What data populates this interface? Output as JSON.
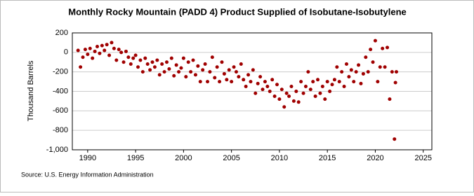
{
  "chart_data": {
    "type": "scatter",
    "title": "Monthly Rocky Mountain (PADD 4) Product Supplied of Isobutane-Isobutylene",
    "y_label": "Thousand Barrels",
    "source": "Source: U.S. Energy Information Administration",
    "color": "#a00000",
    "grid": true,
    "xlim": [
      1988.4,
      2025.9
    ],
    "ylim": [
      -1000,
      200
    ],
    "xticks": [
      1990,
      1995,
      2000,
      2005,
      2010,
      2015,
      2020,
      2025
    ],
    "yticks": [
      {
        "value": -1000,
        "label": "-1,000"
      },
      -800,
      -600,
      -400,
      -200,
      0,
      200
    ],
    "x": [
      1989,
      1989.25,
      1989.5,
      1989.75,
      1990,
      1990.25,
      1990.5,
      1990.75,
      1991,
      1991.25,
      1991.5,
      1991.75,
      1992,
      1992.25,
      1992.5,
      1992.75,
      1993,
      1993.25,
      1993.5,
      1993.75,
      1994,
      1994.25,
      1994.5,
      1994.75,
      1995,
      1995.25,
      1995.5,
      1995.75,
      1996,
      1996.25,
      1996.5,
      1996.75,
      1997,
      1997.25,
      1997.5,
      1997.75,
      1998,
      1998.25,
      1998.5,
      1998.75,
      1999,
      1999.25,
      1999.5,
      1999.75,
      2000,
      2000.25,
      2000.5,
      2000.75,
      2001,
      2001.25,
      2001.5,
      2001.75,
      2002,
      2002.25,
      2002.5,
      2002.75,
      2003,
      2003.25,
      2003.5,
      2003.75,
      2004,
      2004.25,
      2004.5,
      2004.75,
      2005,
      2005.25,
      2005.5,
      2005.75,
      2006,
      2006.25,
      2006.5,
      2006.75,
      2007,
      2007.25,
      2007.5,
      2007.75,
      2008,
      2008.25,
      2008.5,
      2008.75,
      2009,
      2009.25,
      2009.5,
      2009.75,
      2010,
      2010.25,
      2010.5,
      2010.75,
      2011,
      2011.25,
      2011.5,
      2011.75,
      2012,
      2012.25,
      2012.5,
      2012.75,
      2013,
      2013.25,
      2013.5,
      2013.75,
      2014,
      2014.25,
      2014.5,
      2014.75,
      2015,
      2015.25,
      2015.5,
      2015.75,
      2016,
      2016.25,
      2016.5,
      2016.75,
      2017,
      2017.25,
      2017.5,
      2017.75,
      2018,
      2018.25,
      2018.5,
      2018.75,
      2019,
      2019.25,
      2019.5,
      2019.75,
      2020,
      2020.25,
      2020.5,
      2020.75,
      2021,
      2021.25,
      2021.5,
      2021.75,
      2022,
      2022.1,
      2022.2
    ],
    "values": [
      20,
      -150,
      -50,
      30,
      -20,
      40,
      -60,
      10,
      60,
      -10,
      70,
      20,
      80,
      -30,
      100,
      40,
      -80,
      30,
      0,
      -100,
      10,
      -50,
      -120,
      -60,
      -30,
      -150,
      -80,
      -200,
      -60,
      -120,
      -180,
      -100,
      -150,
      -80,
      -230,
      -120,
      -200,
      -100,
      -170,
      -60,
      -240,
      -130,
      -200,
      -160,
      -60,
      -250,
      -100,
      -200,
      -80,
      -230,
      -140,
      -300,
      -180,
      -120,
      -300,
      -200,
      -50,
      -260,
      -150,
      -300,
      -100,
      -220,
      -280,
      -180,
      -300,
      -150,
      -200,
      -250,
      -120,
      -280,
      -350,
      -230,
      -300,
      -180,
      -420,
      -320,
      -250,
      -380,
      -300,
      -350,
      -400,
      -280,
      -450,
      -330,
      -480,
      -380,
      -560,
      -420,
      -450,
      -350,
      -500,
      -400,
      -510,
      -300,
      -420,
      -350,
      -200,
      -380,
      -300,
      -450,
      -280,
      -420,
      -350,
      -480,
      -300,
      -400,
      -330,
      -280,
      -150,
      -300,
      -200,
      -350,
      -120,
      -250,
      -180,
      -300,
      -200,
      -130,
      -320,
      -220,
      -50,
      -200,
      30,
      -100,
      120,
      -300,
      -150,
      40,
      -150,
      50,
      -480,
      -200,
      -890,
      -310,
      -200
    ]
  }
}
